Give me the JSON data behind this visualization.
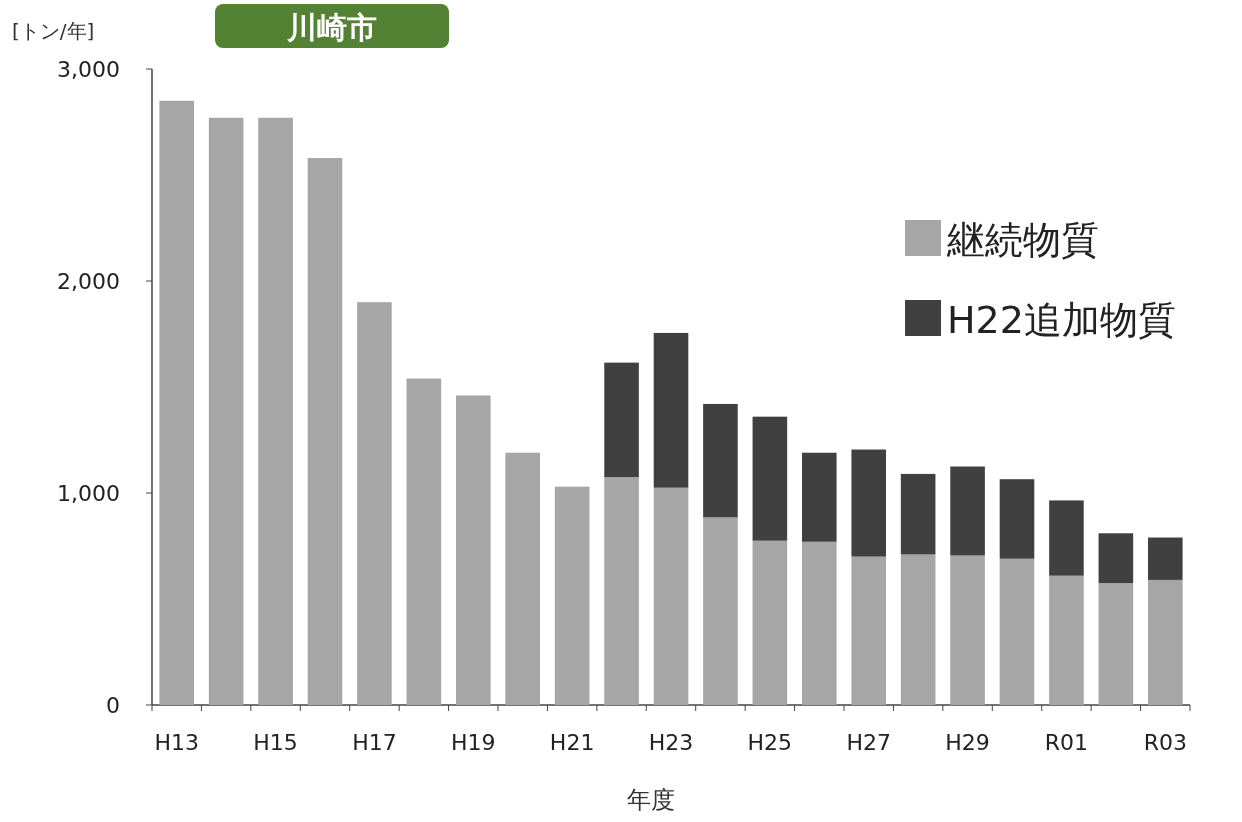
{
  "chart_data": {
    "type": "bar",
    "title": "川崎市",
    "ylabel": "[トン/年]",
    "xlabel": "年度",
    "stacked": true,
    "legend": "right",
    "categories": [
      "H13",
      null,
      "H15",
      null,
      "H17",
      null,
      "H19",
      null,
      "H21",
      null,
      "H23",
      null,
      "H25",
      null,
      "H27",
      null,
      "H29",
      null,
      "R01",
      null,
      "R03"
    ],
    "series": [
      {
        "name": "継続物質",
        "color": "#a6a6a6",
        "values": [
          2850,
          2770,
          2770,
          2580,
          1900,
          1540,
          1460,
          1190,
          1030,
          1075,
          1025,
          885,
          775,
          770,
          700,
          710,
          705,
          690,
          610,
          575,
          590
        ]
      },
      {
        "name": "H22追加物質",
        "color": "#404040",
        "values": [
          null,
          null,
          null,
          null,
          null,
          null,
          null,
          null,
          null,
          540,
          730,
          535,
          585,
          420,
          505,
          380,
          420,
          375,
          355,
          235,
          200
        ]
      }
    ],
    "ylim": [
      0,
      3000
    ],
    "yticks": [
      0,
      {
        "value": 1000,
        "label": "1,000"
      },
      {
        "value": 2000,
        "label": "2,000"
      },
      {
        "value": 3000,
        "label": "3,000"
      }
    ]
  }
}
